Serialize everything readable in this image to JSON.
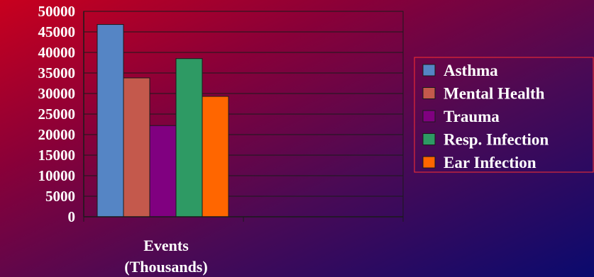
{
  "chart_data": {
    "type": "bar",
    "categories": [
      "Events (Thousands)"
    ],
    "series": [
      {
        "name": "Asthma",
        "values": [
          46800
        ],
        "color": "#5585c5"
      },
      {
        "name": "Mental Health",
        "values": [
          33800
        ],
        "color": "#c4594c"
      },
      {
        "name": "Trauma",
        "values": [
          22200
        ],
        "color": "#800080"
      },
      {
        "name": "Resp. Infection",
        "values": [
          38500
        ],
        "color": "#2e9a64"
      },
      {
        "name": "Ear Infection",
        "values": [
          29300
        ],
        "color": "#ff6600"
      }
    ],
    "xlabel_lines": [
      "Events",
      "(Thousands)"
    ],
    "ylim": [
      0,
      50000
    ],
    "yticks": [
      "0",
      "5000",
      "10000",
      "15000",
      "20000",
      "25000",
      "30000",
      "35000",
      "40000",
      "45000",
      "50000"
    ],
    "grid": true,
    "legend_position": "right"
  }
}
